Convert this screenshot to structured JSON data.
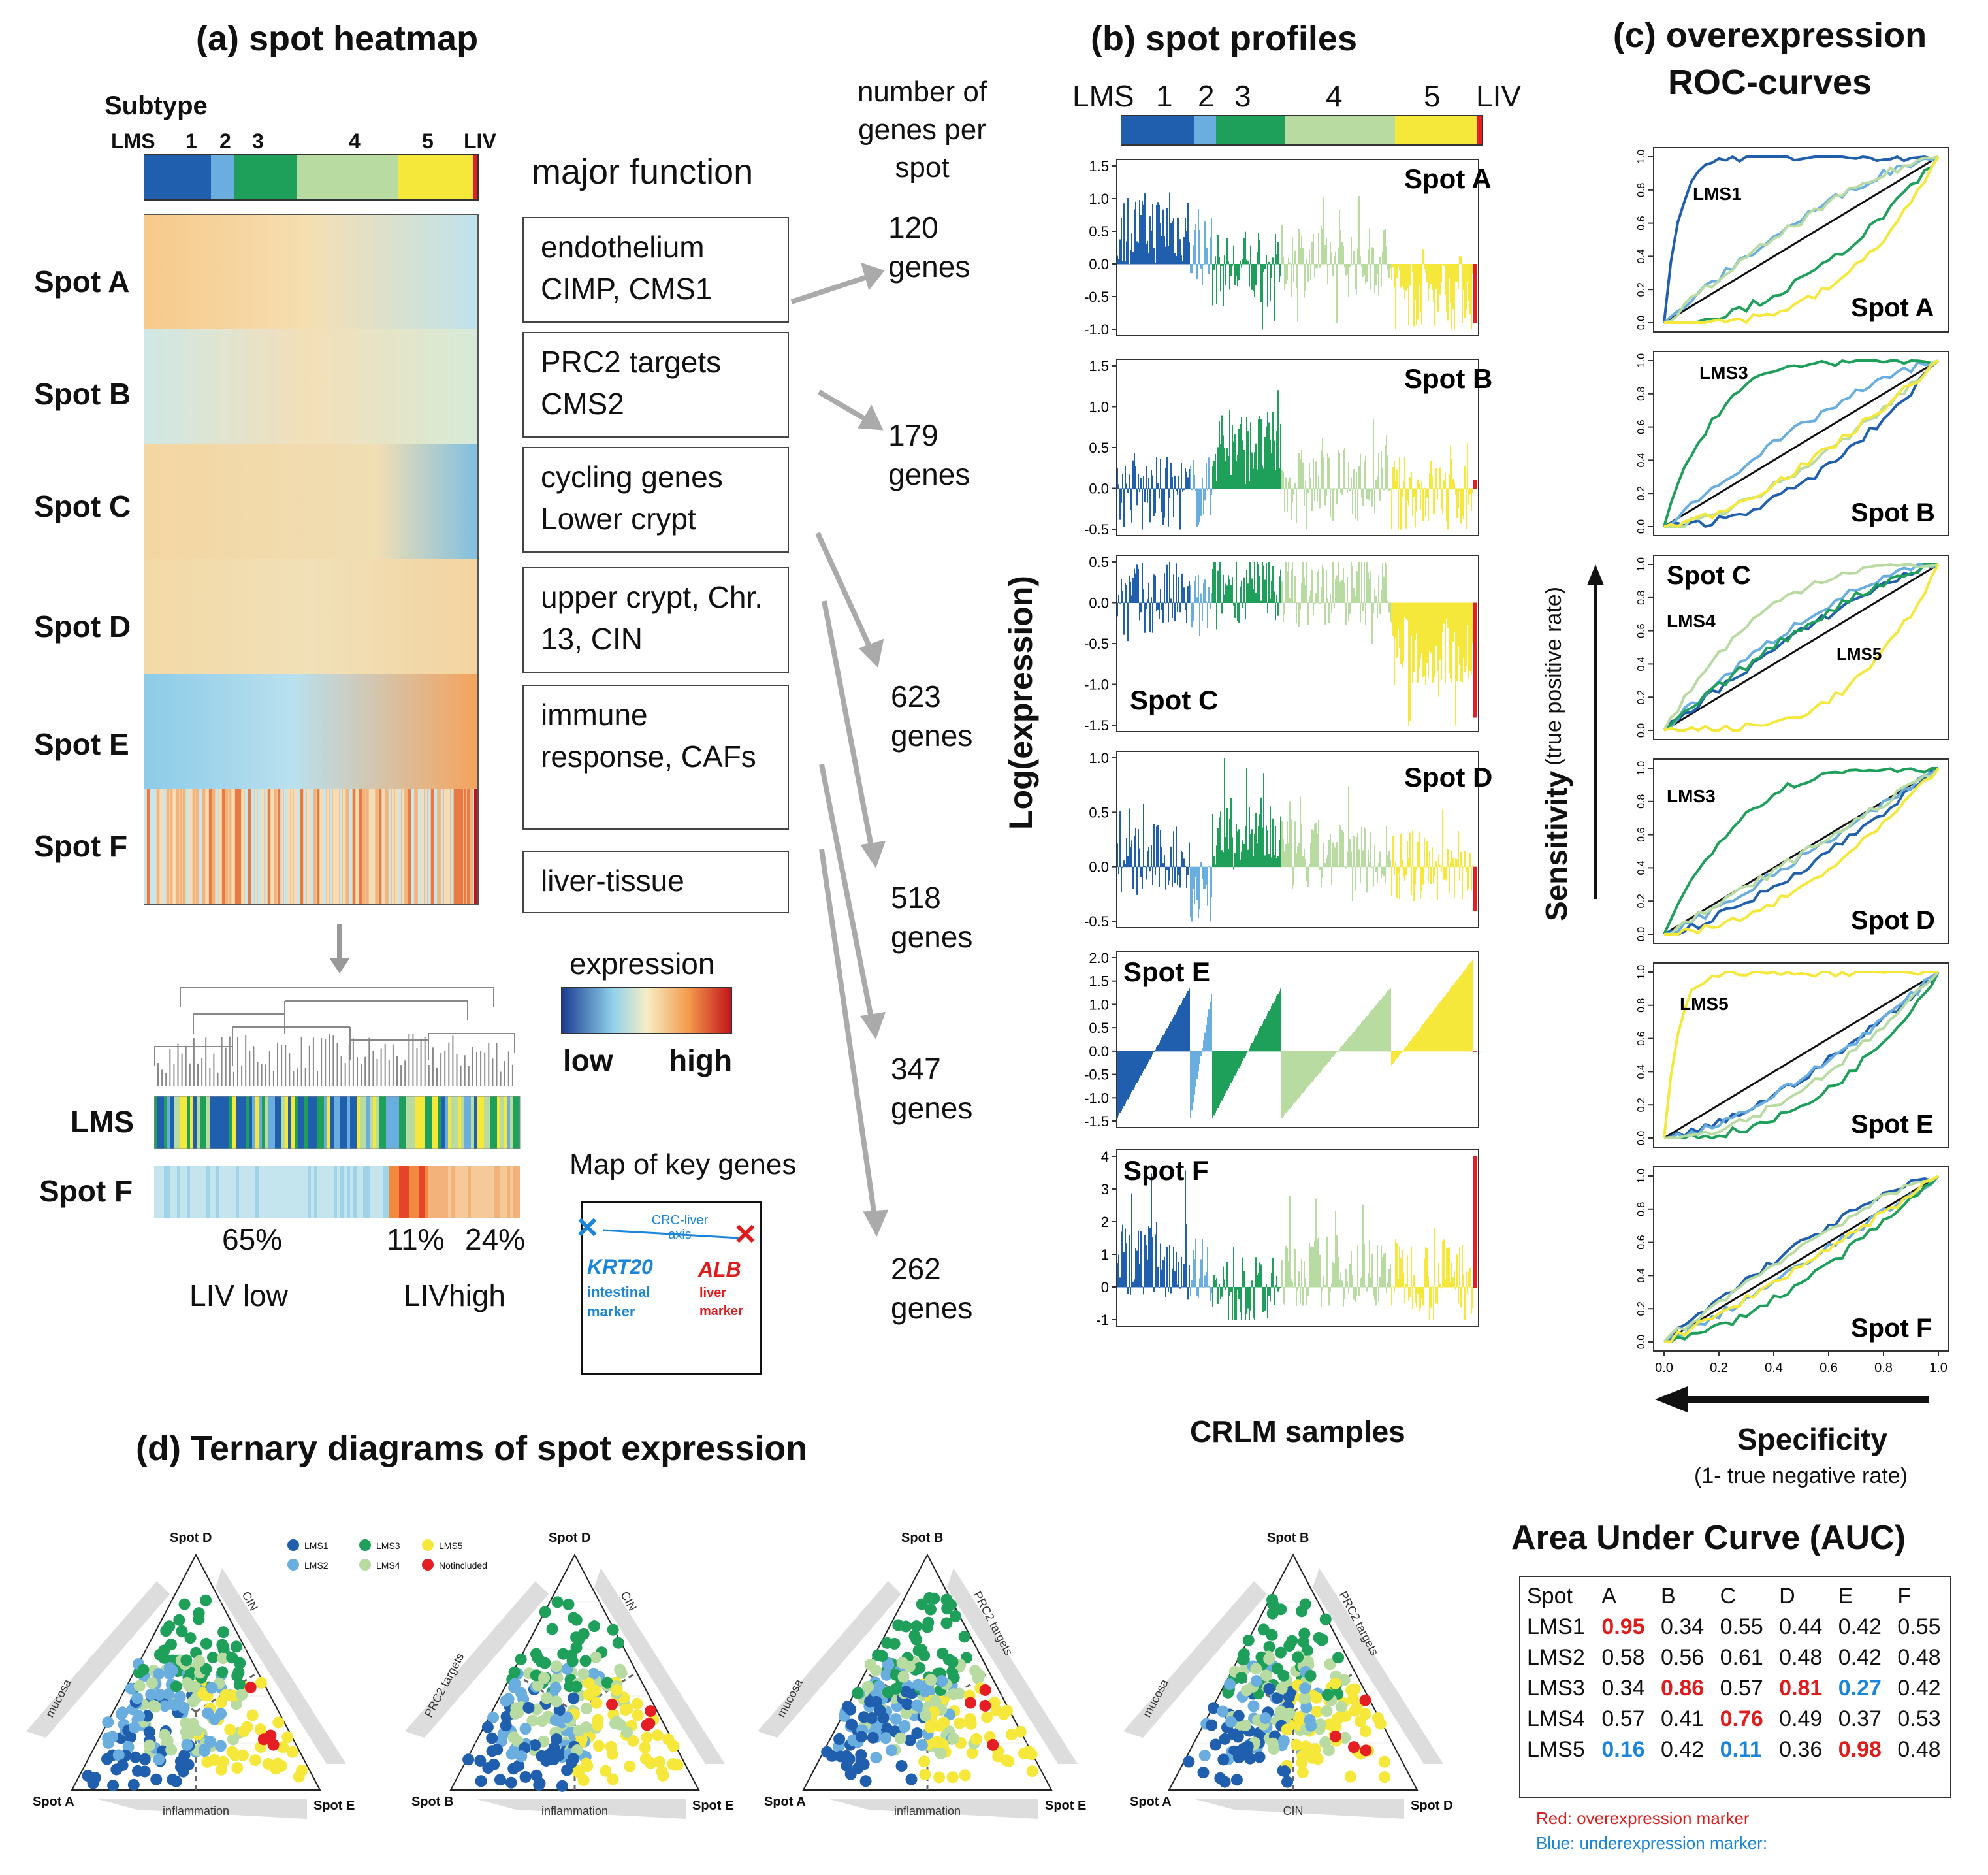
{
  "panel_a": {
    "title": "(a) spot heatmap",
    "subtype_label": "Subtype",
    "subtype_ticks": [
      "LMS",
      "1",
      "2",
      "3",
      "4",
      "5",
      "LIV"
    ],
    "spots": [
      "Spot A",
      "Spot B",
      "Spot C",
      "Spot D",
      "Spot E",
      "Spot F"
    ],
    "major_function_title": "major function",
    "genes_header": "number of genes per spot",
    "functions": [
      "endothelium CIMP, CMS1",
      "PRC2 targets CMS2",
      "cycling genes Lower crypt",
      "upper crypt, Chr. 13, CIN",
      "immune response, CAFs",
      "liver-tissue"
    ],
    "gene_counts": [
      "120 genes",
      "179 genes",
      "623 genes",
      "518 genes",
      "347 genes",
      "262 genes"
    ],
    "cluster_rows": [
      "LMS",
      "Spot F"
    ],
    "percentages": [
      "65%",
      "11%",
      "24%"
    ],
    "liv_labels": [
      "LIV low",
      "LIVhigh"
    ],
    "expression_legend": {
      "title": "expression",
      "low": "low",
      "high": "high"
    },
    "key_genes": {
      "title": "Map of key genes",
      "axis": "CRC-liver axis",
      "gene1": "KRT20",
      "gene1_desc": "intestinal marker",
      "gene2": "ALB",
      "gene2_desc": "liver marker"
    }
  },
  "panel_b": {
    "title": "(b) spot profiles",
    "subtype_ticks": [
      "LMS",
      "1",
      "2",
      "3",
      "4",
      "5",
      "LIV"
    ],
    "ylabel": "Log(expression)",
    "xlabel": "CRLM samples"
  },
  "panel_c": {
    "title": "(c) overexpression ROC-curves",
    "ylabel": "Sensitivity",
    "ylabel_sub": "(true positive rate)",
    "xlabel": "Specificity",
    "xlabel_sub": "(1- true negative rate)"
  },
  "panel_d": {
    "title": "(d) Ternary diagrams of spot expression",
    "legend": [
      "LMS1",
      "LMS2",
      "LMS3",
      "LMS4",
      "LMS5",
      "Notincluded"
    ],
    "diagrams": [
      {
        "top": "Spot D",
        "left": "Spot A",
        "right": "Spot E",
        "side_left": "mucosa",
        "side_right": "CIN",
        "side_bottom": "inflammation"
      },
      {
        "top": "Spot D",
        "left": "Spot B",
        "right": "Spot E",
        "side_left": "PRC2 targets",
        "side_right": "CIN",
        "side_bottom": "inflammation"
      },
      {
        "top": "Spot B",
        "left": "Spot A",
        "right": "Spot E",
        "side_left": "mucosa",
        "side_right": "PRC2 targets",
        "side_bottom": "inflammation"
      },
      {
        "top": "Spot B",
        "left": "Spot A",
        "right": "Spot D",
        "side_left": "mucosa",
        "side_right": "PRC2 targets",
        "side_bottom": "CIN"
      }
    ]
  },
  "auc": {
    "title": "Area Under Curve (AUC)",
    "header": [
      "Spot",
      "A",
      "B",
      "C",
      "D",
      "E",
      "F"
    ],
    "rows": [
      [
        "LMS1",
        "0.95",
        "0.34",
        "0.55",
        "0.44",
        "0.42",
        "0.55"
      ],
      [
        "LMS2",
        "0.58",
        "0.56",
        "0.61",
        "0.48",
        "0.42",
        "0.48"
      ],
      [
        "LMS3",
        "0.34",
        "0.86",
        "0.57",
        "0.81",
        "0.27",
        "0.42"
      ],
      [
        "LMS4",
        "0.57",
        "0.41",
        "0.76",
        "0.49",
        "0.37",
        "0.53"
      ],
      [
        "LMS5",
        "0.16",
        "0.42",
        "0.11",
        "0.36",
        "0.98",
        "0.48"
      ]
    ],
    "note_red": "Red: overexpression marker",
    "note_blue": "Blue: underexpression marker:"
  },
  "colors": {
    "LMS1": "#1f5fad",
    "LMS2": "#6aaee0",
    "LMS3": "#1ea05a",
    "LMS4": "#b7dba0",
    "LMS5": "#f5e83a",
    "LIV": "#e51e25"
  },
  "chart_data": [
    {
      "type": "table",
      "title": "Area Under Curve (AUC)",
      "columns": [
        "A",
        "B",
        "C",
        "D",
        "E",
        "F"
      ],
      "series": [
        {
          "name": "LMS1",
          "values": [
            0.95,
            0.34,
            0.55,
            0.44,
            0.42,
            0.55
          ]
        },
        {
          "name": "LMS2",
          "values": [
            0.58,
            0.56,
            0.61,
            0.48,
            0.42,
            0.48
          ]
        },
        {
          "name": "LMS3",
          "values": [
            0.34,
            0.86,
            0.57,
            0.81,
            0.27,
            0.42
          ]
        },
        {
          "name": "LMS4",
          "values": [
            0.57,
            0.41,
            0.76,
            0.49,
            0.37,
            0.53
          ]
        },
        {
          "name": "LMS5",
          "values": [
            0.16,
            0.42,
            0.11,
            0.36,
            0.98,
            0.48
          ]
        }
      ]
    },
    {
      "type": "bar",
      "title": "(b) spot profiles",
      "panels": [
        {
          "label": "Spot A",
          "ylim": [
            -1.0,
            1.5
          ],
          "ticks": [
            "1.5",
            "1.0",
            "0.5",
            "0.0",
            "-0.5",
            "-1.0"
          ]
        },
        {
          "label": "Spot B",
          "ylim": [
            -0.5,
            1.5
          ],
          "ticks": [
            "1.5",
            "1.0",
            "0.5",
            "0.0",
            "-0.5"
          ]
        },
        {
          "label": "Spot C",
          "ylim": [
            -1.5,
            0.5
          ],
          "ticks": [
            "0.5",
            "0.0",
            "-0.5",
            "-1.0",
            "-1.5"
          ]
        },
        {
          "label": "Spot D",
          "ylim": [
            -0.5,
            1.0
          ],
          "ticks": [
            "1.0",
            "0.5",
            "0.0",
            "-0.5"
          ]
        },
        {
          "label": "Spot E",
          "ylim": [
            -1.5,
            2.0
          ],
          "ticks": [
            "2.0",
            "1.5",
            "1.0",
            "0.5",
            "0.0",
            "-0.5",
            "-1.0",
            "-1.5"
          ]
        },
        {
          "label": "Spot F",
          "ylim": [
            -1,
            4
          ],
          "ticks": [
            "4",
            "3",
            "2",
            "1",
            "0",
            "-1"
          ]
        }
      ]
    },
    {
      "type": "line",
      "title": "(c) overexpression ROC-curves",
      "axis_ticks": [
        "0.0",
        "0.2",
        "0.4",
        "0.6",
        "0.8",
        "1.0"
      ],
      "panels": [
        {
          "label": "Spot A",
          "highlight": "LMS1"
        },
        {
          "label": "Spot B",
          "highlight": "LMS3"
        },
        {
          "label": "Spot C",
          "highlight": "LMS4",
          "highlight2": "LMS5"
        },
        {
          "label": "Spot D",
          "highlight": "LMS3"
        },
        {
          "label": "Spot E",
          "highlight": "LMS5"
        },
        {
          "label": "Spot F",
          "highlight": ""
        }
      ]
    }
  ]
}
